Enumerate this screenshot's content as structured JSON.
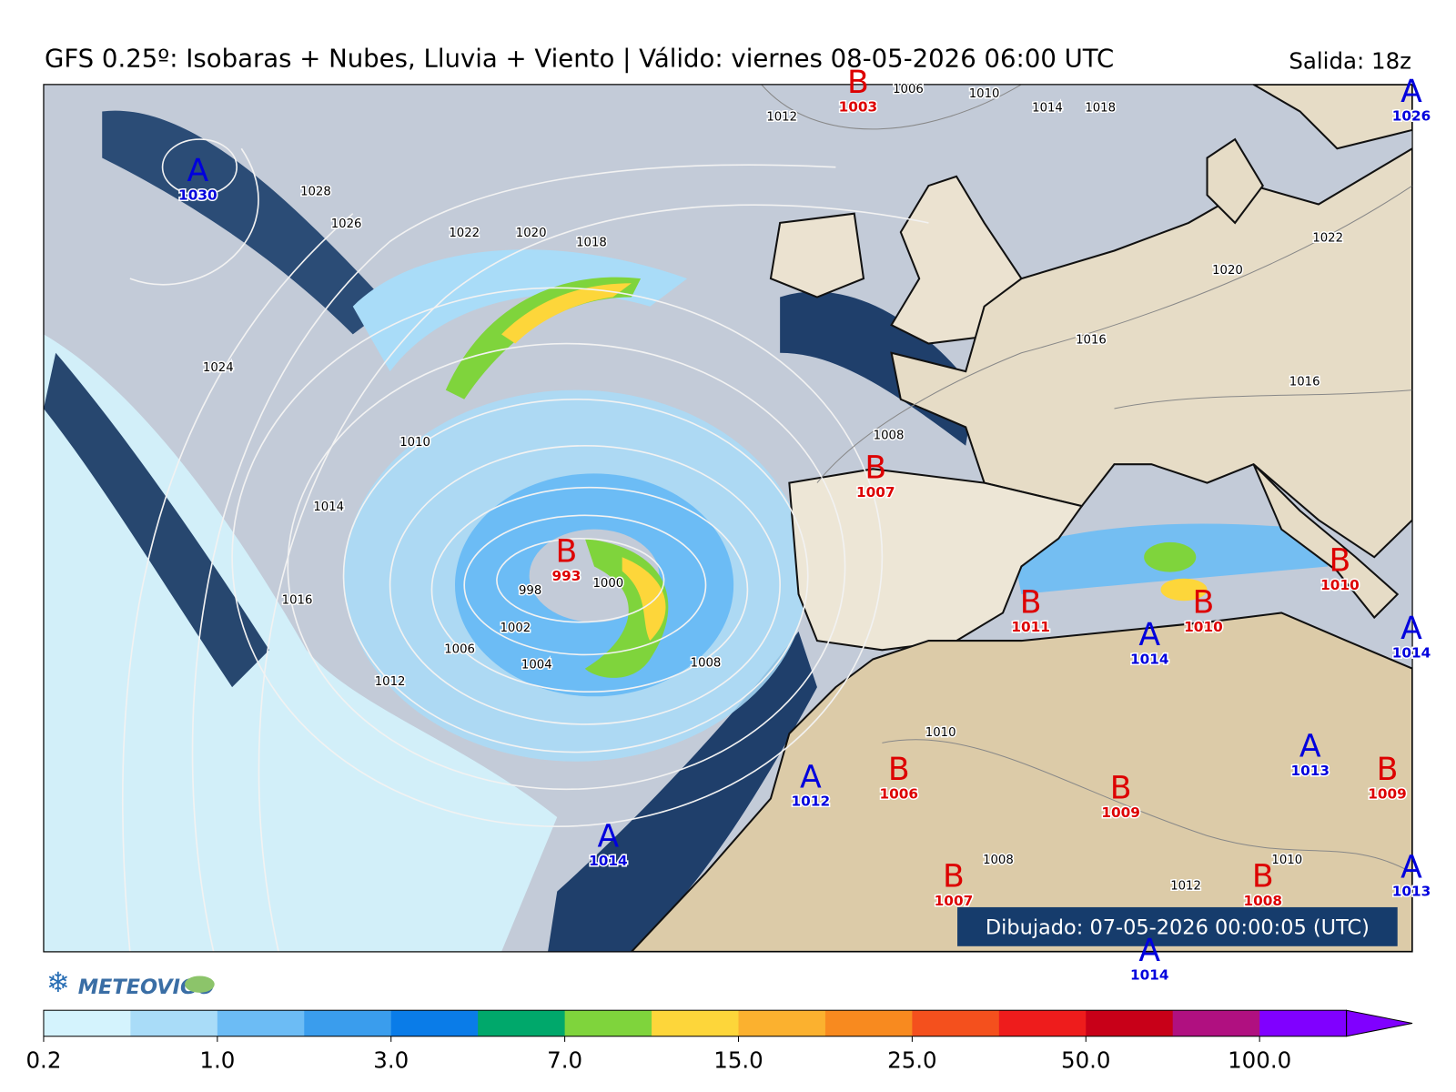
{
  "title": "GFS 0.25º: Isobaras + Nubes, Lluvia + Viento | Válido: viernes 08-05-2026 06:00 UTC",
  "run": "Salida: 18z",
  "drawn": "Dibujado: 07-05-2026 00:00:05 (UTC)",
  "logo": "METEOVIGO",
  "centers": [
    {
      "letter": "A",
      "value": 1030
    },
    {
      "letter": "B",
      "value": 1003
    },
    {
      "letter": "A",
      "value": 1026
    },
    {
      "letter": "B",
      "value": 1007
    },
    {
      "letter": "B",
      "value": 993
    },
    {
      "letter": "B",
      "value": 1011
    },
    {
      "letter": "A",
      "value": 1014
    },
    {
      "letter": "B",
      "value": 1010
    },
    {
      "letter": "B",
      "value": 1010
    },
    {
      "letter": "A",
      "value": 1014
    },
    {
      "letter": "A",
      "value": 1013
    },
    {
      "letter": "B",
      "value": 1009
    },
    {
      "letter": "A",
      "value": 1012
    },
    {
      "letter": "B",
      "value": 1006
    },
    {
      "letter": "B",
      "value": 1009
    },
    {
      "letter": "A",
      "value": 1014
    },
    {
      "letter": "B",
      "value": 1007
    },
    {
      "letter": "B",
      "value": 1008
    },
    {
      "letter": "A",
      "value": 1013
    },
    {
      "letter": "A",
      "value": 1014
    }
  ],
  "isobar_labels": [
    1024,
    1022,
    1020,
    1018,
    1010,
    1014,
    1016,
    1012,
    1006,
    1004,
    1002,
    998,
    1000,
    1008,
    1008,
    1016,
    1016,
    1020,
    1022,
    1026,
    1028,
    1012,
    1010,
    1006,
    1014,
    1018,
    1010,
    1008,
    1012,
    1010
  ],
  "colorbar": {
    "colors": [
      "#d4f3fd",
      "#a9dcf8",
      "#6cbcf5",
      "#3a9ded",
      "#0a7ce8",
      "#00a86b",
      "#7fd43c",
      "#fdd63a",
      "#fbb12f",
      "#f88a1f",
      "#f4501d",
      "#ee1c1c",
      "#c80018",
      "#b01080",
      "#8000ff"
    ],
    "ticks": [
      0.2,
      {
        "value": 1,
        "label": "1.0"
      },
      {
        "value": 3,
        "label": "3.0"
      },
      {
        "value": 7,
        "label": "7.0"
      },
      {
        "value": 15,
        "label": "15.0"
      },
      {
        "value": 25,
        "label": "25.0"
      },
      {
        "value": 50,
        "label": "50.0"
      },
      {
        "value": 100,
        "label": "100.0"
      }
    ]
  }
}
